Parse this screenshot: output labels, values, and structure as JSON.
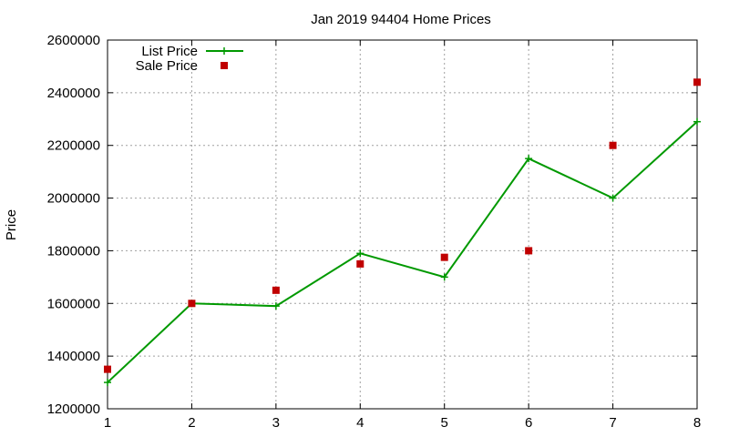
{
  "chart_data": {
    "type": "line",
    "title": "Jan 2019 94404 Home Prices",
    "xlabel": "",
    "ylabel": "Price",
    "x": [
      1,
      2,
      3,
      4,
      5,
      6,
      7,
      8
    ],
    "xlim": [
      1,
      8
    ],
    "ylim": [
      1200000,
      2600000
    ],
    "xticks": [
      "1",
      "2",
      "3",
      "4",
      "5",
      "6",
      "7",
      "8"
    ],
    "yticks": [
      "1200000",
      "1400000",
      "1600000",
      "1800000",
      "2000000",
      "2200000",
      "2400000",
      "2600000"
    ],
    "grid": true,
    "legend_position": "top-left",
    "series": [
      {
        "name": "List Price",
        "type": "linespoints",
        "marker": "plus",
        "color": "#009900",
        "values": [
          1300000,
          1600000,
          1590000,
          1790000,
          1700000,
          2150000,
          2000000,
          2290000
        ]
      },
      {
        "name": "Sale Price",
        "type": "points",
        "marker": "square",
        "color": "#c00000",
        "values": [
          1350000,
          1600000,
          1650000,
          1750000,
          1775000,
          1800000,
          2200000,
          2440000
        ]
      }
    ]
  }
}
